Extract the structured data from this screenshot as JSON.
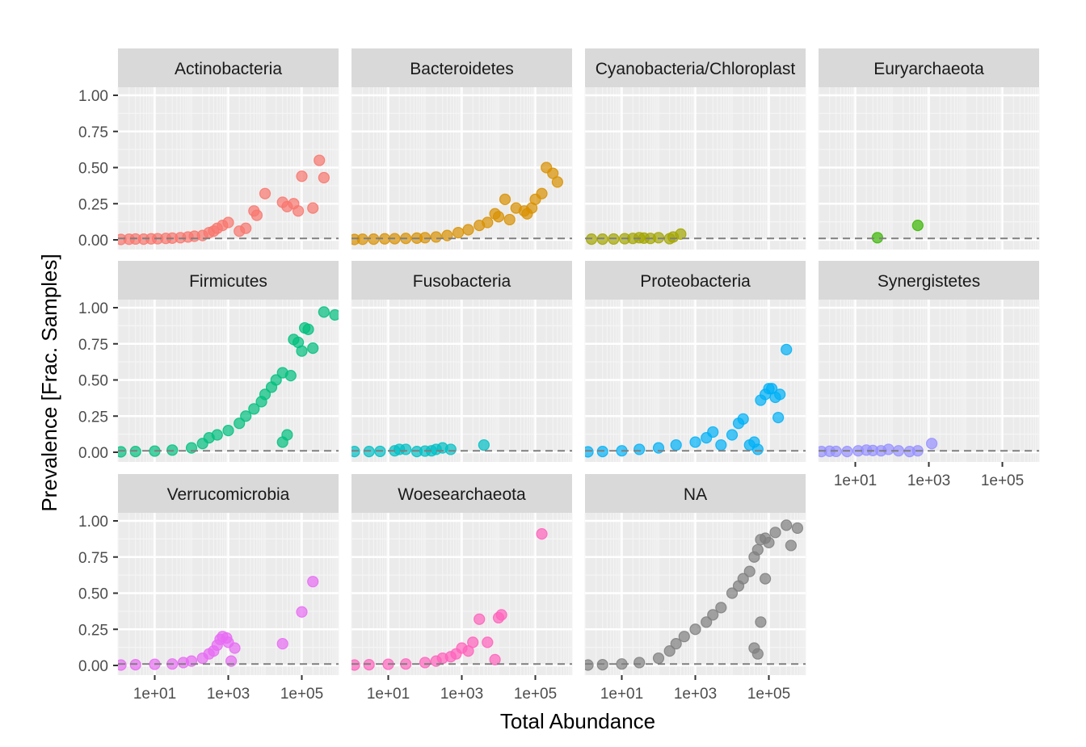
{
  "chart_data": {
    "type": "scatter",
    "layout": "facet_wrap",
    "xlabel": "Total Abundance",
    "ylabel": "Prevalence [Frac. Samples]",
    "x_scale": "log10",
    "xlim": [
      1,
      1000000
    ],
    "ylim": [
      0,
      1
    ],
    "x_ticks": [
      10,
      1000,
      100000
    ],
    "x_tick_labels": [
      "1e+01",
      "1e+03",
      "1e+05"
    ],
    "y_ticks": [
      0,
      0.25,
      0.5,
      0.75,
      1
    ],
    "y_tick_labels": [
      "0.00",
      "0.25",
      "0.50",
      "0.75",
      "1.00"
    ],
    "reference_line": {
      "y": 0.01,
      "style": "dashed",
      "color": "#7f7f7f"
    },
    "grid": true,
    "legend": "none",
    "panels": [
      {
        "name": "Actinobacteria",
        "color": "#F8766D",
        "points": [
          [
            1.2,
            0.003
          ],
          [
            2,
            0.004
          ],
          [
            3,
            0.006
          ],
          [
            5,
            0.005
          ],
          [
            8,
            0.007
          ],
          [
            12,
            0.008
          ],
          [
            20,
            0.01
          ],
          [
            30,
            0.012
          ],
          [
            50,
            0.015
          ],
          [
            80,
            0.02
          ],
          [
            120,
            0.025
          ],
          [
            200,
            0.03
          ],
          [
            300,
            0.05
          ],
          [
            400,
            0.06
          ],
          [
            500,
            0.08
          ],
          [
            700,
            0.1
          ],
          [
            1000,
            0.12
          ],
          [
            2000,
            0.06
          ],
          [
            3000,
            0.08
          ],
          [
            5000,
            0.2
          ],
          [
            6000,
            0.17
          ],
          [
            10000,
            0.32
          ],
          [
            30000,
            0.26
          ],
          [
            40000,
            0.23
          ],
          [
            60000,
            0.25
          ],
          [
            80000,
            0.2
          ],
          [
            100000,
            0.44
          ],
          [
            200000,
            0.22
          ],
          [
            300000,
            0.55
          ],
          [
            400000,
            0.43
          ]
        ]
      },
      {
        "name": "Bacteroidetes",
        "color": "#D89000",
        "points": [
          [
            1.2,
            0.003
          ],
          [
            2,
            0.004
          ],
          [
            4,
            0.005
          ],
          [
            8,
            0.007
          ],
          [
            15,
            0.008
          ],
          [
            30,
            0.01
          ],
          [
            60,
            0.012
          ],
          [
            100,
            0.015
          ],
          [
            200,
            0.02
          ],
          [
            400,
            0.03
          ],
          [
            800,
            0.05
          ],
          [
            1500,
            0.07
          ],
          [
            3000,
            0.1
          ],
          [
            5000,
            0.12
          ],
          [
            8000,
            0.18
          ],
          [
            10000,
            0.16
          ],
          [
            15000,
            0.28
          ],
          [
            20000,
            0.14
          ],
          [
            30000,
            0.22
          ],
          [
            50000,
            0.2
          ],
          [
            60000,
            0.18
          ],
          [
            80000,
            0.22
          ],
          [
            100000,
            0.28
          ],
          [
            150000,
            0.32
          ],
          [
            200000,
            0.5
          ],
          [
            300000,
            0.46
          ],
          [
            400000,
            0.4
          ]
        ]
      },
      {
        "name": "Cyanobacteria/Chloroplast",
        "color": "#A3A500",
        "points": [
          [
            1.5,
            0.005
          ],
          [
            3,
            0.005
          ],
          [
            6,
            0.006
          ],
          [
            12,
            0.008
          ],
          [
            20,
            0.01
          ],
          [
            30,
            0.015
          ],
          [
            40,
            0.012
          ],
          [
            60,
            0.01
          ],
          [
            100,
            0.015
          ],
          [
            200,
            0.008
          ],
          [
            250,
            0.02
          ],
          [
            400,
            0.04
          ]
        ]
      },
      {
        "name": "Euryarchaeota",
        "color": "#39B600",
        "points": [
          [
            40,
            0.015
          ],
          [
            500,
            0.1
          ]
        ]
      },
      {
        "name": "Firmicutes",
        "color": "#00BF7D",
        "points": [
          [
            1.2,
            0.003
          ],
          [
            3,
            0.005
          ],
          [
            10,
            0.008
          ],
          [
            30,
            0.015
          ],
          [
            100,
            0.03
          ],
          [
            200,
            0.06
          ],
          [
            300,
            0.1
          ],
          [
            500,
            0.12
          ],
          [
            1000,
            0.15
          ],
          [
            2000,
            0.2
          ],
          [
            3000,
            0.25
          ],
          [
            5000,
            0.3
          ],
          [
            8000,
            0.35
          ],
          [
            10000,
            0.4
          ],
          [
            15000,
            0.45
          ],
          [
            20000,
            0.5
          ],
          [
            30000,
            0.55
          ],
          [
            50000,
            0.53
          ],
          [
            60000,
            0.78
          ],
          [
            80000,
            0.76
          ],
          [
            100000,
            0.7
          ],
          [
            120000,
            0.86
          ],
          [
            150000,
            0.85
          ],
          [
            200000,
            0.72
          ],
          [
            400000,
            0.97
          ],
          [
            800000,
            0.95
          ],
          [
            40000,
            0.12
          ],
          [
            30000,
            0.07
          ]
        ]
      },
      {
        "name": "Fusobacteria",
        "color": "#00BFC4",
        "points": [
          [
            1.2,
            0.005
          ],
          [
            3,
            0.005
          ],
          [
            6,
            0.006
          ],
          [
            15,
            0.01
          ],
          [
            20,
            0.02
          ],
          [
            30,
            0.02
          ],
          [
            60,
            0.005
          ],
          [
            100,
            0.008
          ],
          [
            150,
            0.01
          ],
          [
            200,
            0.02
          ],
          [
            300,
            0.03
          ],
          [
            500,
            0.02
          ],
          [
            4000,
            0.05
          ]
        ]
      },
      {
        "name": "Proteobacteria",
        "color": "#00B0F6",
        "points": [
          [
            1.2,
            0.003
          ],
          [
            3,
            0.005
          ],
          [
            10,
            0.01
          ],
          [
            30,
            0.02
          ],
          [
            100,
            0.03
          ],
          [
            300,
            0.05
          ],
          [
            1000,
            0.07
          ],
          [
            2000,
            0.1
          ],
          [
            3000,
            0.14
          ],
          [
            5000,
            0.05
          ],
          [
            10000,
            0.12
          ],
          [
            15000,
            0.2
          ],
          [
            20000,
            0.23
          ],
          [
            30000,
            0.05
          ],
          [
            40000,
            0.07
          ],
          [
            50000,
            0.02
          ],
          [
            60000,
            0.36
          ],
          [
            80000,
            0.4
          ],
          [
            100000,
            0.44
          ],
          [
            120000,
            0.44
          ],
          [
            150000,
            0.38
          ],
          [
            180000,
            0.24
          ],
          [
            200000,
            0.4
          ],
          [
            300000,
            0.71
          ]
        ]
      },
      {
        "name": "Synergistetes",
        "color": "#9590FF",
        "points": [
          [
            1.2,
            0.005
          ],
          [
            2,
            0.007
          ],
          [
            3,
            0.006
          ],
          [
            6,
            0.005
          ],
          [
            12,
            0.01
          ],
          [
            20,
            0.015
          ],
          [
            30,
            0.012
          ],
          [
            50,
            0.01
          ],
          [
            80,
            0.02
          ],
          [
            150,
            0.01
          ],
          [
            300,
            0.005
          ],
          [
            500,
            0.01
          ],
          [
            1200,
            0.06
          ]
        ]
      },
      {
        "name": "Verrucomicrobia",
        "color": "#E76BF3",
        "points": [
          [
            1.2,
            0.003
          ],
          [
            3,
            0.005
          ],
          [
            10,
            0.008
          ],
          [
            30,
            0.01
          ],
          [
            60,
            0.02
          ],
          [
            100,
            0.03
          ],
          [
            200,
            0.05
          ],
          [
            300,
            0.08
          ],
          [
            400,
            0.1
          ],
          [
            500,
            0.14
          ],
          [
            600,
            0.18
          ],
          [
            700,
            0.2
          ],
          [
            900,
            0.19
          ],
          [
            1000,
            0.16
          ],
          [
            1200,
            0.03
          ],
          [
            1500,
            0.12
          ],
          [
            30000,
            0.15
          ],
          [
            100000,
            0.37
          ],
          [
            200000,
            0.58
          ]
        ]
      },
      {
        "name": "Woesearchaeota",
        "color": "#FF62BC",
        "points": [
          [
            1.2,
            0.003
          ],
          [
            3,
            0.005
          ],
          [
            10,
            0.008
          ],
          [
            30,
            0.01
          ],
          [
            100,
            0.02
          ],
          [
            200,
            0.03
          ],
          [
            300,
            0.05
          ],
          [
            500,
            0.06
          ],
          [
            700,
            0.08
          ],
          [
            1000,
            0.12
          ],
          [
            1500,
            0.1
          ],
          [
            2000,
            0.16
          ],
          [
            3000,
            0.32
          ],
          [
            5000,
            0.16
          ],
          [
            8000,
            0.04
          ],
          [
            10000,
            0.33
          ],
          [
            12000,
            0.35
          ],
          [
            150000,
            0.91
          ]
        ]
      },
      {
        "name": "NA",
        "color": "#7F7F7F",
        "points": [
          [
            1.2,
            0.003
          ],
          [
            3,
            0.005
          ],
          [
            10,
            0.01
          ],
          [
            30,
            0.02
          ],
          [
            100,
            0.05
          ],
          [
            200,
            0.1
          ],
          [
            300,
            0.15
          ],
          [
            500,
            0.2
          ],
          [
            1000,
            0.25
          ],
          [
            2000,
            0.3
          ],
          [
            3000,
            0.35
          ],
          [
            5000,
            0.4
          ],
          [
            10000,
            0.5
          ],
          [
            15000,
            0.55
          ],
          [
            20000,
            0.6
          ],
          [
            30000,
            0.65
          ],
          [
            40000,
            0.75
          ],
          [
            50000,
            0.8
          ],
          [
            60000,
            0.87
          ],
          [
            80000,
            0.88
          ],
          [
            100000,
            0.85
          ],
          [
            150000,
            0.92
          ],
          [
            300000,
            0.97
          ],
          [
            400000,
            0.83
          ],
          [
            600000,
            0.95
          ],
          [
            50000,
            0.08
          ],
          [
            40000,
            0.12
          ],
          [
            60000,
            0.3
          ],
          [
            80000,
            0.6
          ]
        ]
      }
    ]
  }
}
